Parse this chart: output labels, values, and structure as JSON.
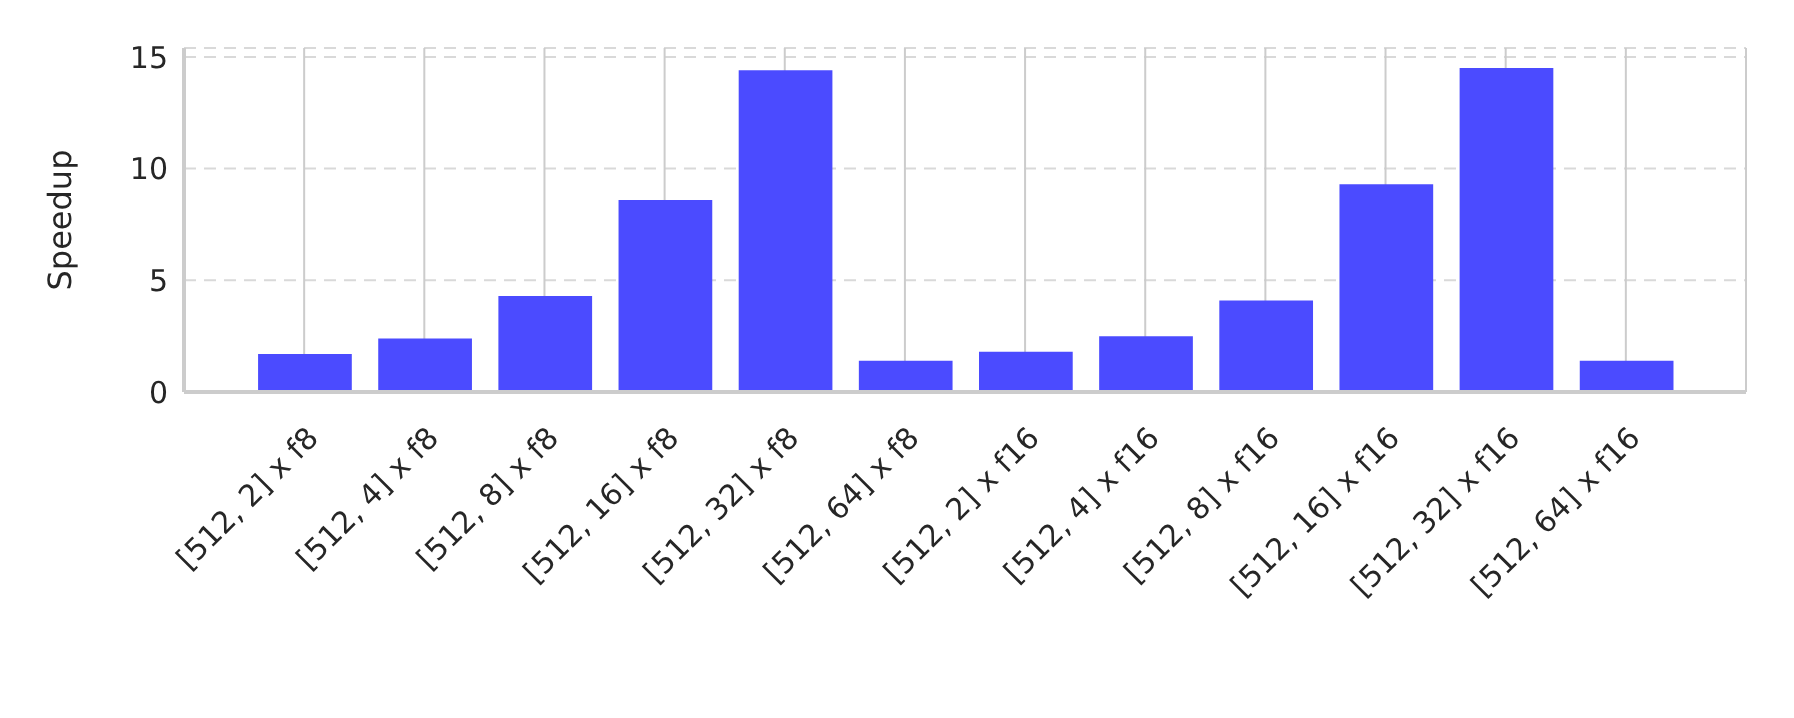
{
  "chart_data": {
    "type": "bar",
    "ylabel": "Speedup",
    "categories": [
      "[512, 2] x f8",
      "[512, 4] x f8",
      "[512, 8] x f8",
      "[512, 16] x f8",
      "[512, 32] x f8",
      "[512, 64] x f8",
      "[512, 2] x f16",
      "[512, 4] x f16",
      "[512, 8] x f16",
      "[512, 16] x f16",
      "[512, 32] x f16",
      "[512, 64] x f16"
    ],
    "values": [
      1.7,
      2.4,
      4.3,
      8.6,
      14.4,
      1.4,
      1.8,
      2.5,
      4.1,
      9.3,
      14.5,
      1.4
    ],
    "color": "#4b4bff",
    "ylim": [
      0,
      15.4
    ],
    "yticks": [
      0,
      5,
      10,
      15
    ],
    "grid": true
  }
}
